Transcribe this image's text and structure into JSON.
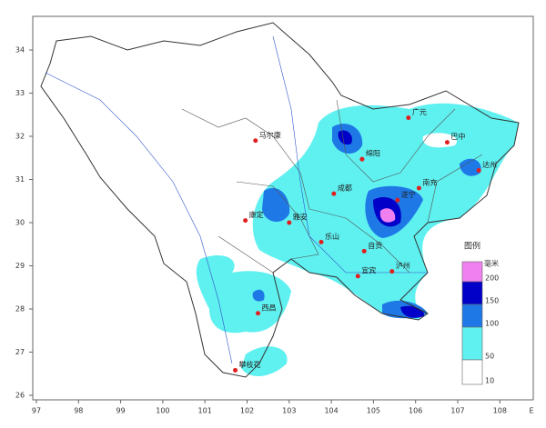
{
  "map": {
    "xticks": [
      97,
      98,
      99,
      100,
      101,
      102,
      103,
      104,
      105,
      106,
      107,
      108
    ],
    "x_unit": "E",
    "yticks": [
      26,
      27,
      28,
      29,
      30,
      31,
      32,
      33,
      34
    ],
    "cities": [
      {
        "name": "马尔康",
        "lon": 102.2,
        "lat": 31.9
      },
      {
        "name": "康定",
        "lon": 101.96,
        "lat": 30.05
      },
      {
        "name": "雅安",
        "lon": 103.0,
        "lat": 30.0
      },
      {
        "name": "成都",
        "lon": 104.06,
        "lat": 30.67
      },
      {
        "name": "绵阳",
        "lon": 104.73,
        "lat": 31.47
      },
      {
        "name": "广元",
        "lon": 105.83,
        "lat": 32.43
      },
      {
        "name": "巴中",
        "lon": 106.75,
        "lat": 31.86
      },
      {
        "name": "达州",
        "lon": 107.5,
        "lat": 31.21
      },
      {
        "name": "南充",
        "lon": 106.08,
        "lat": 30.8
      },
      {
        "name": "遂宁",
        "lon": 105.57,
        "lat": 30.52
      },
      {
        "name": "乐山",
        "lon": 103.76,
        "lat": 29.55
      },
      {
        "name": "自贡",
        "lon": 104.78,
        "lat": 29.34
      },
      {
        "name": "宜宾",
        "lon": 104.63,
        "lat": 28.76
      },
      {
        "name": "泸州",
        "lon": 105.44,
        "lat": 28.87
      },
      {
        "name": "西昌",
        "lon": 102.26,
        "lat": 27.9
      },
      {
        "name": "攀枝花",
        "lon": 101.72,
        "lat": 26.58
      }
    ],
    "legend": {
      "title": "图例",
      "unit": "毫米",
      "levels": [
        {
          "value": 200,
          "color": "#f080f0"
        },
        {
          "value": 150,
          "color": "#0000c8"
        },
        {
          "value": 100,
          "color": "#1e78e6"
        },
        {
          "value": 50,
          "color": "#5ff0f0"
        },
        {
          "value": 10,
          "color": "#ffffff"
        }
      ]
    }
  }
}
